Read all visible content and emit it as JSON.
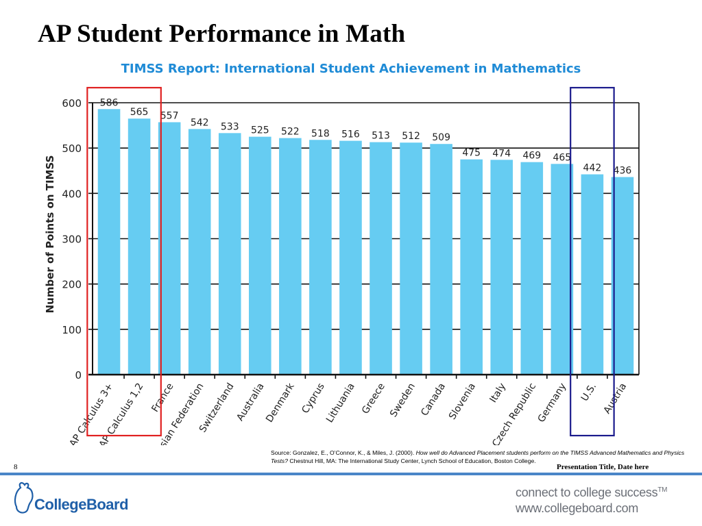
{
  "slide": {
    "title": "AP Student Performance in Math",
    "number": "8",
    "footer_caption": "Presentation Title, Date here"
  },
  "source": {
    "prefix": "Source: Gonzalez, E., O’Connor, K., & Miles, J. (2000). ",
    "title_italic": "How well do Advanced Placement students perform on the TIMSS Advanced Mathematics and Physics Tests?",
    "suffix": " Chestnut Hill, MA: The International Study Center, Lynch School of Education, Boston College."
  },
  "branding": {
    "logo_text": "CollegeBoard",
    "tagline_line1": "connect to college success",
    "tagline_tm": "TM",
    "tagline_line2": "www.collegeboard.com",
    "brand_color": "#1f5fa8"
  },
  "chart_data": {
    "type": "bar",
    "title": "TIMSS Report: International Student Achievement in Mathematics",
    "ylabel": "Number of Points on TIMSS",
    "xlabel": "",
    "ylim": [
      0,
      600
    ],
    "yticks": [
      0,
      100,
      200,
      300,
      400,
      500,
      600
    ],
    "grid": true,
    "bar_color": "#66ccf2",
    "title_color": "#1f8bd6",
    "categories": [
      "AP Calculus 3+",
      "AP Calculus 1,2",
      "France",
      "Russian Federation",
      "Switzerland",
      "Australia",
      "Denmark",
      "Cyprus",
      "Lithuania",
      "Greece",
      "Sweden",
      "Canada",
      "Slovenia",
      "Italy",
      "Czech Republic",
      "Germany",
      "U.S.",
      "Austria"
    ],
    "values": [
      586,
      565,
      557,
      542,
      533,
      525,
      522,
      518,
      516,
      513,
      512,
      509,
      475,
      474,
      469,
      465,
      442,
      436
    ],
    "highlight_boxes": [
      {
        "categories": [
          "AP Calculus 3+",
          "AP Calculus 1,2"
        ],
        "color": "#e02020"
      },
      {
        "categories": [
          "U.S."
        ],
        "color": "#1a1a8c"
      }
    ]
  }
}
